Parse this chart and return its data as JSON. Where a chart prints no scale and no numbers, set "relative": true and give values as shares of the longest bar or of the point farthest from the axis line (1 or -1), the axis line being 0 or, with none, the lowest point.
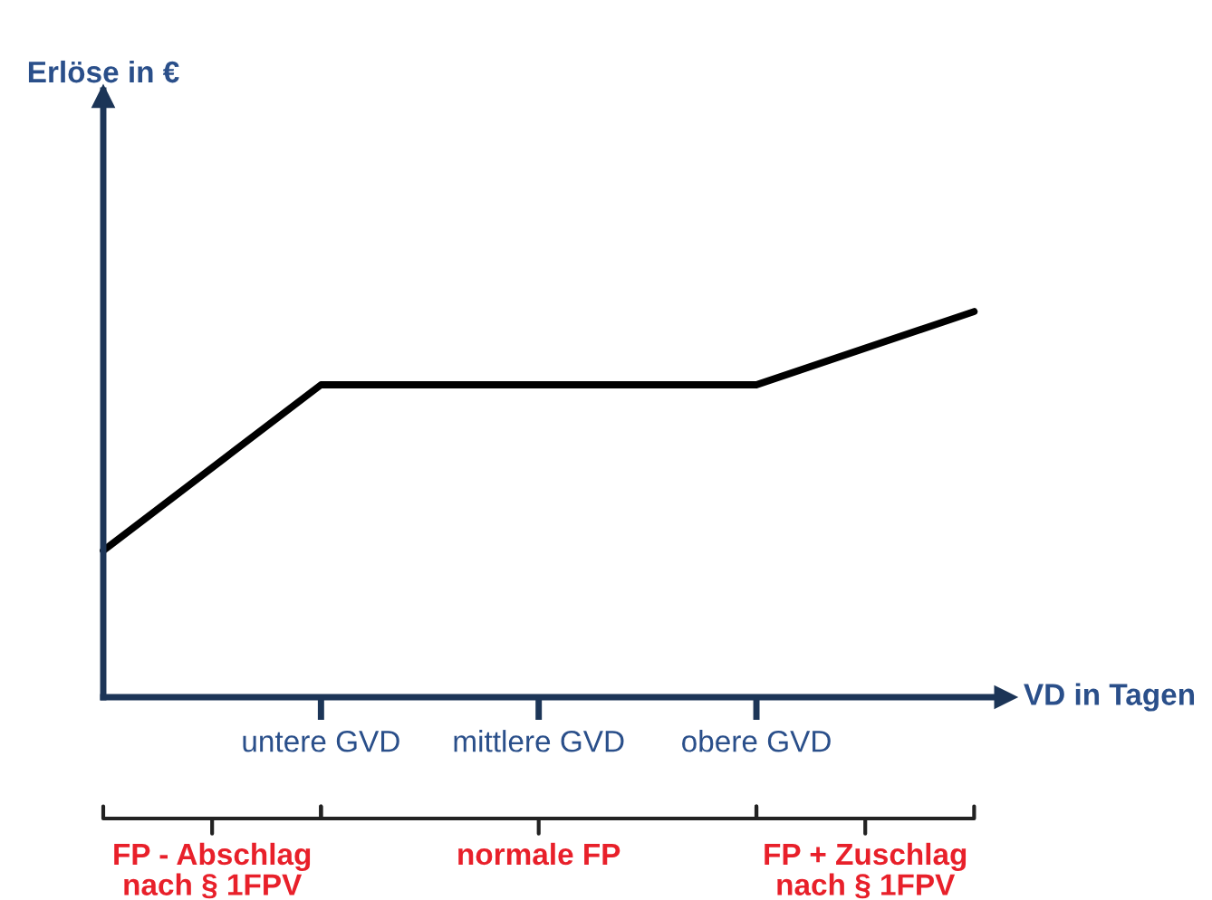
{
  "chart_data": {
    "type": "line",
    "relative": true,
    "xlabel": "VD in Tagen",
    "categories": [
      null,
      "untere GVD",
      "mittlere GVD",
      "obere GVD",
      null
    ],
    "tick_labels": "x",
    "grid": false,
    "legend": false,
    "marker": "none",
    "line_style": "solid",
    "series": [
      {
        "color": "#000000",
        "values": [
          0.38,
          0.81,
          0.81,
          0.81,
          1
        ]
      }
    ],
    "annotations": [
      "Erlöse in €",
      "FP - Abschlag\nnach § 1FPV",
      "normale FP",
      "FP + Zuschlag\nnach § 1FPV"
    ]
  }
}
